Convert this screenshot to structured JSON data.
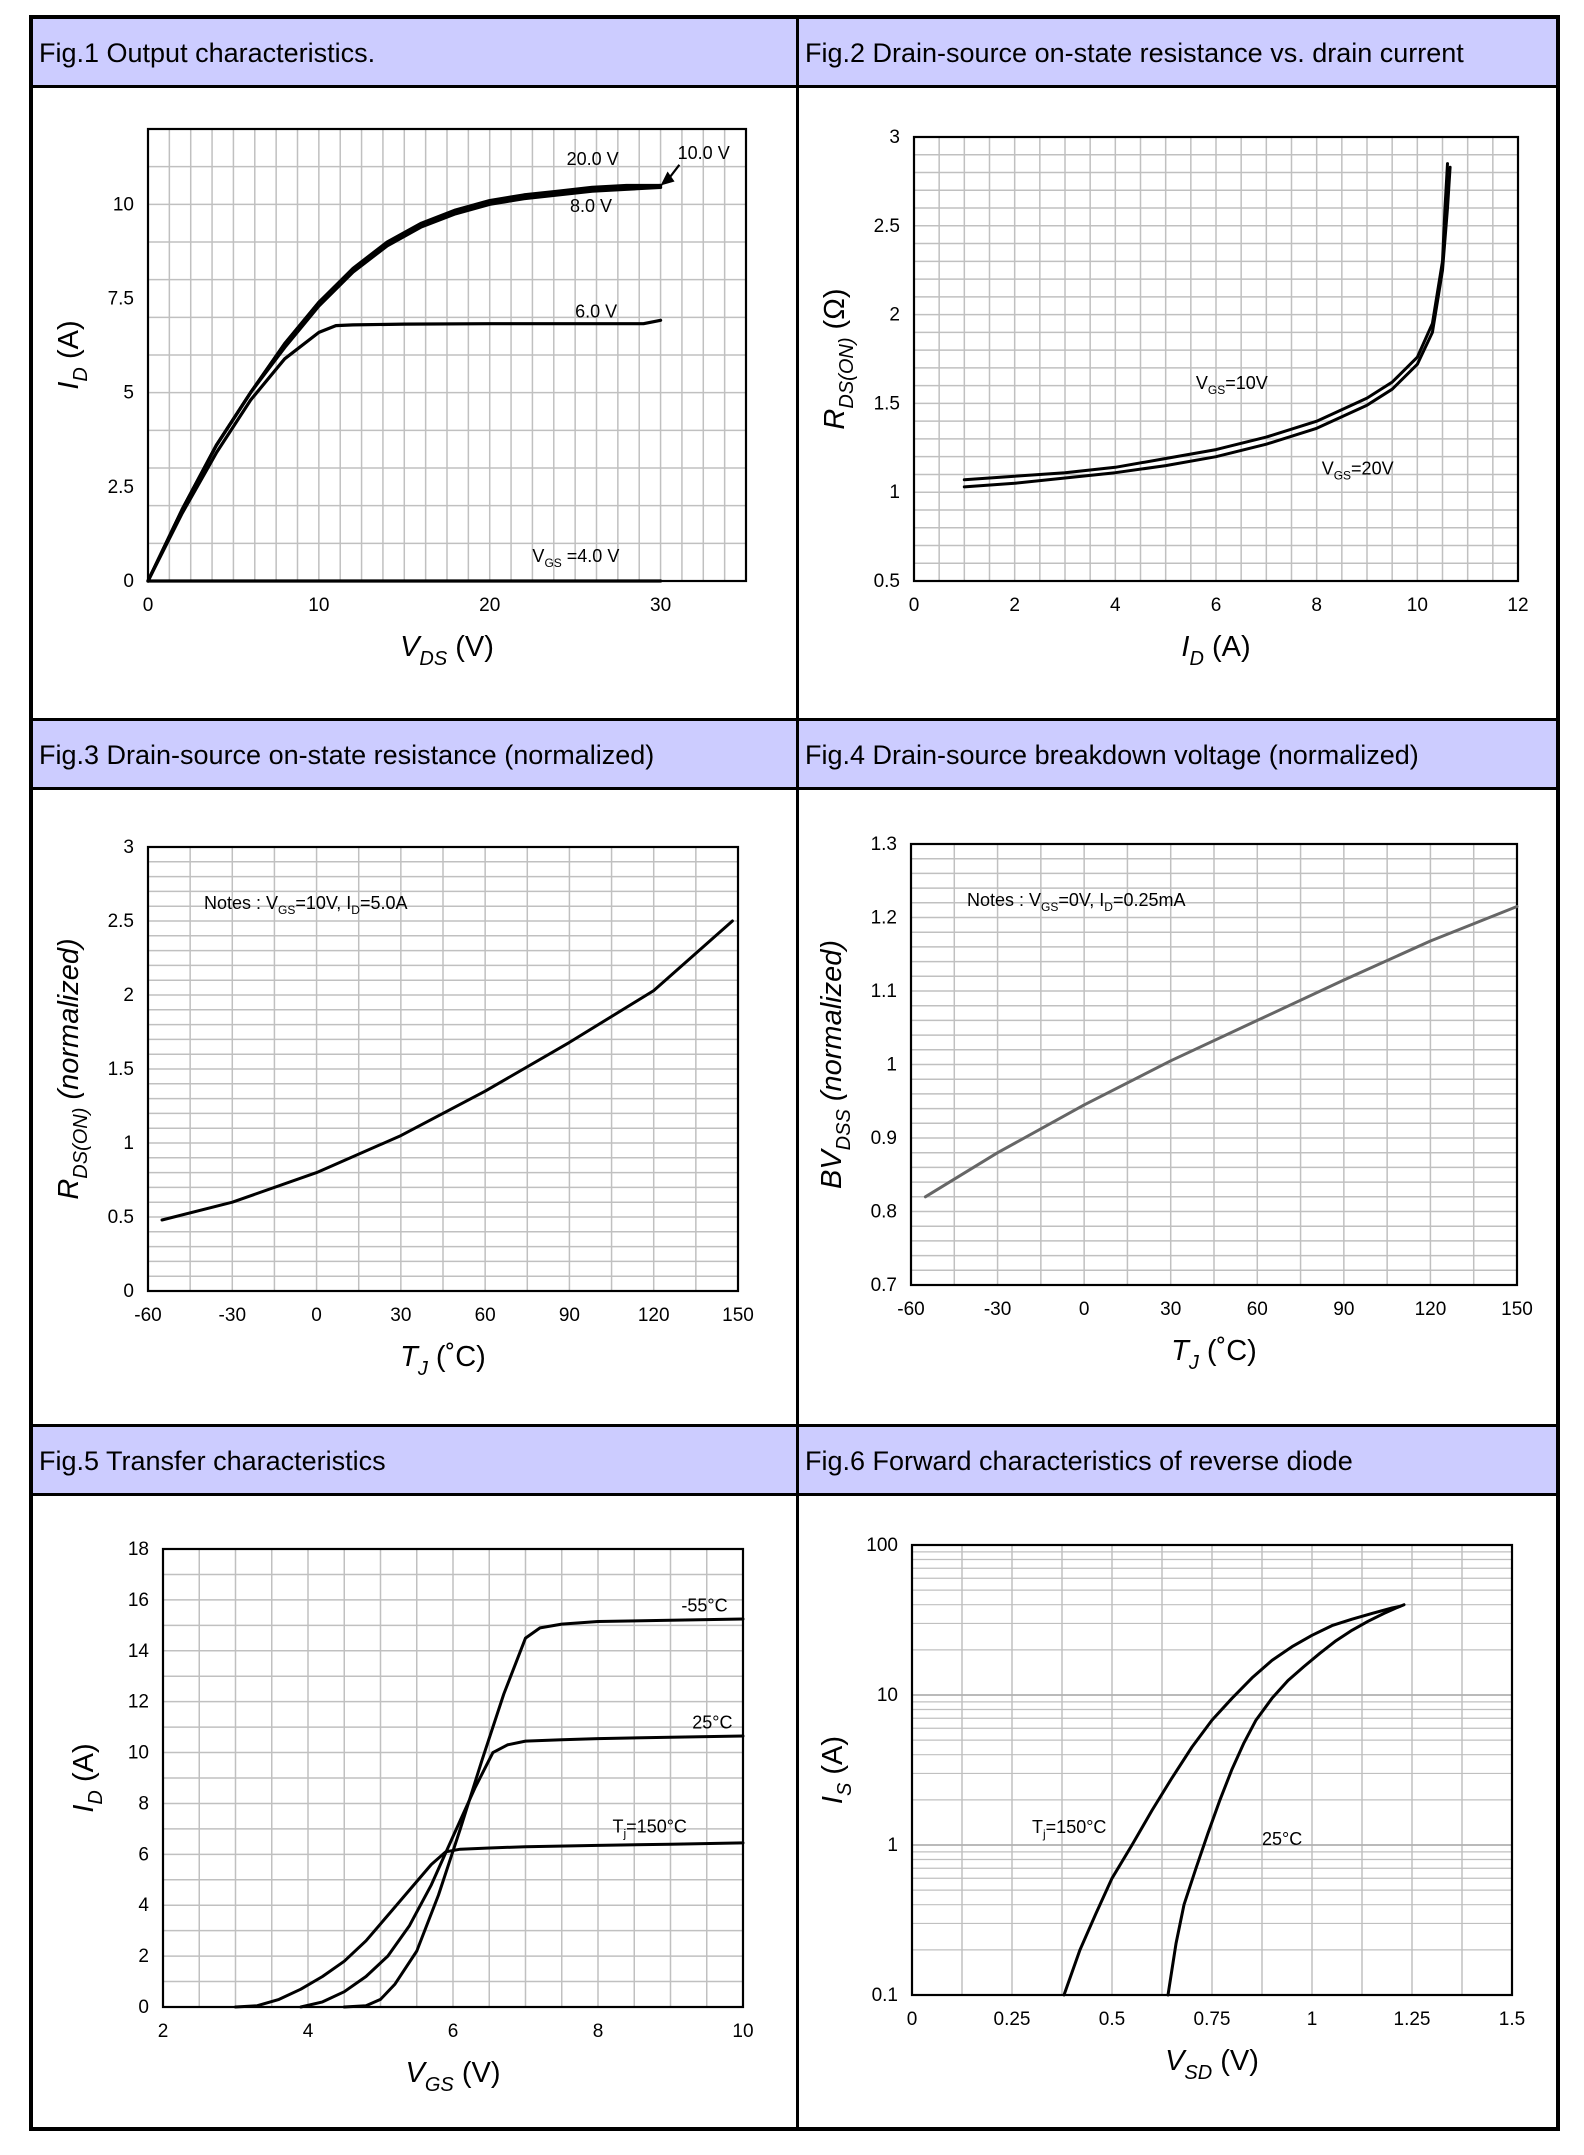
{
  "colors": {
    "title_bg": "#ccccff",
    "grid": "#c0c0c0",
    "curve": "#000000",
    "curve_gray": "#666666"
  },
  "chart_data": [
    {
      "id": "fig1",
      "type": "line",
      "title": "Fig.1 Output characteristics.",
      "xlabel": {
        "sym": "V",
        "sub": "DS",
        "unit": " (V)"
      },
      "ylabel": {
        "sym": "I",
        "sub": "D",
        "unit": " (A)"
      },
      "xlim": [
        0,
        35
      ],
      "ylim": [
        0,
        12
      ],
      "xticks": [
        0,
        10,
        20,
        30
      ],
      "yticks": [
        0,
        2.5,
        5,
        7.5,
        10
      ],
      "ytick_labels": [
        "0",
        "2.5",
        "5",
        "7.5",
        "10"
      ],
      "series": [
        {
          "name": "20.0 V",
          "x": [
            0,
            2,
            4,
            6,
            8,
            10,
            12,
            14,
            16,
            18,
            20,
            22,
            24,
            26,
            28,
            30
          ],
          "y": [
            0,
            1.9,
            3.6,
            5.0,
            6.3,
            7.4,
            8.3,
            9.0,
            9.5,
            9.85,
            10.1,
            10.25,
            10.35,
            10.45,
            10.5,
            10.5
          ]
        },
        {
          "name": "10.0 V",
          "x": [
            0,
            2,
            4,
            6,
            8,
            10,
            12,
            14,
            16,
            18,
            20,
            22,
            24,
            26,
            28,
            30
          ],
          "y": [
            0,
            1.9,
            3.6,
            5.0,
            6.3,
            7.4,
            8.25,
            8.95,
            9.45,
            9.8,
            10.05,
            10.2,
            10.3,
            10.4,
            10.45,
            10.5
          ]
        },
        {
          "name": "8.0 V",
          "x": [
            0,
            2,
            4,
            6,
            8,
            10,
            12,
            14,
            16,
            18,
            20,
            22,
            24,
            26,
            28,
            30
          ],
          "y": [
            0,
            1.9,
            3.6,
            5.0,
            6.2,
            7.3,
            8.2,
            8.9,
            9.4,
            9.75,
            10.0,
            10.15,
            10.25,
            10.35,
            10.4,
            10.45
          ]
        },
        {
          "name": "6.0 V",
          "x": [
            0,
            2,
            4,
            6,
            8,
            10,
            11,
            12,
            15,
            20,
            25,
            29,
            30
          ],
          "y": [
            0,
            1.8,
            3.4,
            4.8,
            5.9,
            6.6,
            6.78,
            6.8,
            6.82,
            6.83,
            6.83,
            6.83,
            6.92
          ]
        },
        {
          "name": "VGS=4.0 V",
          "x": [
            0,
            30
          ],
          "y": [
            0,
            0
          ]
        }
      ],
      "annotations": [
        {
          "text": "20.0 V",
          "x": 24.5,
          "y": 11.05
        },
        {
          "text": "10.0 V",
          "x": 31.0,
          "y": 11.2
        },
        {
          "text": "8.0 V",
          "x": 24.7,
          "y": 9.8
        },
        {
          "text": "6.0 V",
          "x": 25.0,
          "y": 7.0
        },
        {
          "sym": "V",
          "sub": "GS",
          "rest": " =4.0 V",
          "x": 22.5,
          "y": 0.5
        }
      ]
    },
    {
      "id": "fig2",
      "type": "line",
      "title": "Fig.2 Drain-source on-state resistance vs. drain current",
      "xlabel": {
        "sym": "I",
        "sub": "D",
        "unit": " (A)"
      },
      "ylabel": {
        "sym": "R",
        "sub": "DS(ON)",
        "unit": " (Ω)"
      },
      "xlim": [
        0,
        12
      ],
      "ylim": [
        0.5,
        3
      ],
      "xticks": [
        0,
        2,
        4,
        6,
        8,
        10,
        12
      ],
      "yticks": [
        0.5,
        1,
        1.5,
        2,
        2.5,
        3
      ],
      "ytick_labels": [
        "0.5",
        "1",
        "1.5",
        "2",
        "2.5",
        "3"
      ],
      "series": [
        {
          "name": "VGS=10V",
          "x": [
            1,
            2,
            3,
            4,
            5,
            6,
            7,
            8,
            9,
            9.5,
            10,
            10.3,
            10.5,
            10.55,
            10.6
          ],
          "y": [
            1.07,
            1.09,
            1.11,
            1.14,
            1.19,
            1.24,
            1.31,
            1.4,
            1.53,
            1.62,
            1.76,
            1.95,
            2.3,
            2.6,
            2.85
          ]
        },
        {
          "name": "VGS=20V",
          "x": [
            1,
            2,
            3,
            4,
            5,
            6,
            7,
            8,
            9,
            9.5,
            10,
            10.3,
            10.5,
            10.6,
            10.65
          ],
          "y": [
            1.03,
            1.05,
            1.08,
            1.11,
            1.15,
            1.2,
            1.27,
            1.36,
            1.49,
            1.58,
            1.72,
            1.9,
            2.25,
            2.6,
            2.83
          ]
        }
      ],
      "annotations": [
        {
          "sym": "V",
          "sub": "GS",
          "rest": "=10V",
          "x": 5.6,
          "y": 1.58
        },
        {
          "sym": "V",
          "sub": "GS",
          "rest": "=20V",
          "x": 8.1,
          "y": 1.1
        }
      ]
    },
    {
      "id": "fig3",
      "type": "line",
      "title": "Fig.3 Drain-source on-state resistance (normalized)",
      "xlabel": {
        "sym": "T",
        "sub": "J",
        "unit": " (˚C)"
      },
      "ylabel": {
        "sym": "R",
        "sub": "DS(ON)",
        "unit": " (normalized)"
      },
      "xlim": [
        -60,
        150
      ],
      "ylim": [
        0,
        3
      ],
      "xticks": [
        -60,
        -30,
        0,
        30,
        60,
        90,
        120,
        150
      ],
      "yticks": [
        0,
        0.5,
        1,
        1.5,
        2,
        2.5,
        3
      ],
      "ytick_labels": [
        "0",
        "0.5",
        "1",
        "1.5",
        "2",
        "2.5",
        "3"
      ],
      "series": [
        {
          "name": "RDS(ON)",
          "x": [
            -55,
            -30,
            0,
            30,
            60,
            90,
            120,
            148
          ],
          "y": [
            0.48,
            0.6,
            0.8,
            1.05,
            1.35,
            1.68,
            2.03,
            2.5
          ]
        }
      ],
      "note": {
        "prefix": "Notes : ",
        "p1sym": "V",
        "p1sub": "GS",
        "p1rest": "=10V,  ",
        "p2sym": "I",
        "p2sub": "D",
        "p2rest": "=5.0A"
      }
    },
    {
      "id": "fig4",
      "type": "line",
      "title": "Fig.4 Drain-source breakdown voltage (normalized)",
      "xlabel": {
        "sym": "T",
        "sub": "J",
        "unit": " (˚C)"
      },
      "ylabel": {
        "sym": "BV",
        "sub": "DSS",
        "unit": " (normalized)"
      },
      "xlim": [
        -60,
        150
      ],
      "ylim": [
        0.7,
        1.3
      ],
      "xticks": [
        -60,
        -30,
        0,
        30,
        60,
        90,
        120,
        150
      ],
      "yticks": [
        0.7,
        0.8,
        0.9,
        1,
        1.1,
        1.2,
        1.3
      ],
      "ytick_labels": [
        "0.7",
        "0.8",
        "0.9",
        "1",
        "1.1",
        "1.2",
        "1.3"
      ],
      "series": [
        {
          "name": "BVDSS",
          "x": [
            -55,
            -30,
            0,
            30,
            60,
            90,
            120,
            150
          ],
          "y": [
            0.82,
            0.88,
            0.945,
            1.005,
            1.06,
            1.115,
            1.168,
            1.215
          ]
        }
      ],
      "note": {
        "prefix": "Notes : ",
        "p1sym": "V",
        "p1sub": "GS",
        "p1rest": "=0V,  ",
        "p2sym": "I",
        "p2sub": "D",
        "p2rest": "=0.25mA"
      }
    },
    {
      "id": "fig5",
      "type": "line",
      "title": "Fig.5 Transfer characteristics",
      "xlabel": {
        "sym": "V",
        "sub": "GS",
        "unit": " (V)"
      },
      "ylabel": {
        "sym": "I",
        "sub": "D",
        "unit": " (A)"
      },
      "xlim": [
        2,
        10
      ],
      "ylim": [
        0,
        18
      ],
      "xticks": [
        2,
        4,
        6,
        8,
        10
      ],
      "yticks": [
        0,
        2,
        4,
        6,
        8,
        10,
        12,
        14,
        16,
        18
      ],
      "ytick_labels": [
        "0",
        "2",
        "4",
        "6",
        "8",
        "10",
        "12",
        "14",
        "16",
        "18"
      ],
      "series": [
        {
          "name": "-55°C",
          "x": [
            4.5,
            4.8,
            5.0,
            5.2,
            5.5,
            5.8,
            6.1,
            6.4,
            6.7,
            7.0,
            7.2,
            7.5,
            8,
            9,
            10
          ],
          "y": [
            0,
            0.05,
            0.3,
            0.9,
            2.2,
            4.4,
            7,
            9.7,
            12.3,
            14.5,
            14.9,
            15.05,
            15.15,
            15.2,
            15.25
          ]
        },
        {
          "name": "25°C",
          "x": [
            3.9,
            4.2,
            4.5,
            4.8,
            5.1,
            5.4,
            5.7,
            6.0,
            6.3,
            6.55,
            6.75,
            7,
            7.5,
            8,
            9,
            10
          ],
          "y": [
            0,
            0.2,
            0.6,
            1.2,
            2.0,
            3.2,
            4.8,
            6.7,
            8.6,
            10.0,
            10.3,
            10.45,
            10.5,
            10.55,
            10.6,
            10.65
          ]
        },
        {
          "name": "Tj=150°C",
          "x": [
            3.0,
            3.3,
            3.6,
            3.9,
            4.2,
            4.5,
            4.8,
            5.1,
            5.4,
            5.7,
            5.9,
            6.1,
            6.5,
            7,
            8,
            9,
            10
          ],
          "y": [
            0,
            0.05,
            0.3,
            0.7,
            1.2,
            1.8,
            2.6,
            3.6,
            4.6,
            5.6,
            6.1,
            6.2,
            6.25,
            6.3,
            6.35,
            6.4,
            6.45
          ]
        }
      ],
      "annotations": [
        {
          "text": "-55°C",
          "x": 9.15,
          "y": 15.55
        },
        {
          "text": "25°C",
          "x": 9.3,
          "y": 10.95
        },
        {
          "sym": "T",
          "sub": "j",
          "rest": "=150°C",
          "x": 8.2,
          "y": 6.85
        }
      ]
    },
    {
      "id": "fig6",
      "type": "line",
      "title": "Fig.6 Forward characteristics of reverse diode",
      "xlabel": {
        "sym": "V",
        "sub": "SD",
        "unit": " (V)"
      },
      "ylabel": {
        "sym": "I",
        "sub": "S",
        "unit": " (A)"
      },
      "xscale": "linear",
      "yscale": "log",
      "xlim": [
        0,
        1.5
      ],
      "ylim": [
        0.1,
        100
      ],
      "xticks": [
        0,
        0.25,
        0.5,
        0.75,
        1,
        1.25,
        1.5
      ],
      "xtick_labels": [
        "0",
        "0.25",
        "0.5",
        "0.75",
        "1",
        "1.25",
        "1.5"
      ],
      "yticks": [
        0.1,
        1,
        10,
        100
      ],
      "ytick_labels": [
        "0.1",
        "1",
        "10",
        "100"
      ],
      "series": [
        {
          "name": "Tj=150°C",
          "x": [
            0.38,
            0.42,
            0.46,
            0.5,
            0.55,
            0.6,
            0.65,
            0.7,
            0.75,
            0.8,
            0.85,
            0.9,
            0.95,
            1.0,
            1.05,
            1.1,
            1.15,
            1.2,
            1.22
          ],
          "y": [
            0.1,
            0.2,
            0.35,
            0.6,
            1.0,
            1.7,
            2.8,
            4.5,
            6.8,
            9.5,
            13,
            17,
            21,
            25,
            29,
            32,
            35,
            38,
            39
          ]
        },
        {
          "name": "25°C",
          "x": [
            0.64,
            0.66,
            0.68,
            0.71,
            0.74,
            0.77,
            0.8,
            0.83,
            0.86,
            0.9,
            0.94,
            0.98,
            1.02,
            1.06,
            1.1,
            1.14,
            1.18,
            1.21,
            1.23
          ],
          "y": [
            0.1,
            0.22,
            0.4,
            0.7,
            1.2,
            2.0,
            3.2,
            4.8,
            6.8,
            9.5,
            12.5,
            15.5,
            19,
            23,
            27,
            31,
            35,
            38,
            40
          ]
        }
      ],
      "annotations": [
        {
          "sym": "T",
          "sub": "j",
          "rest": "=150°C",
          "x": 0.3,
          "y": 1.2
        },
        {
          "text": "25°C",
          "x": 0.875,
          "y": 1.0
        }
      ]
    }
  ]
}
